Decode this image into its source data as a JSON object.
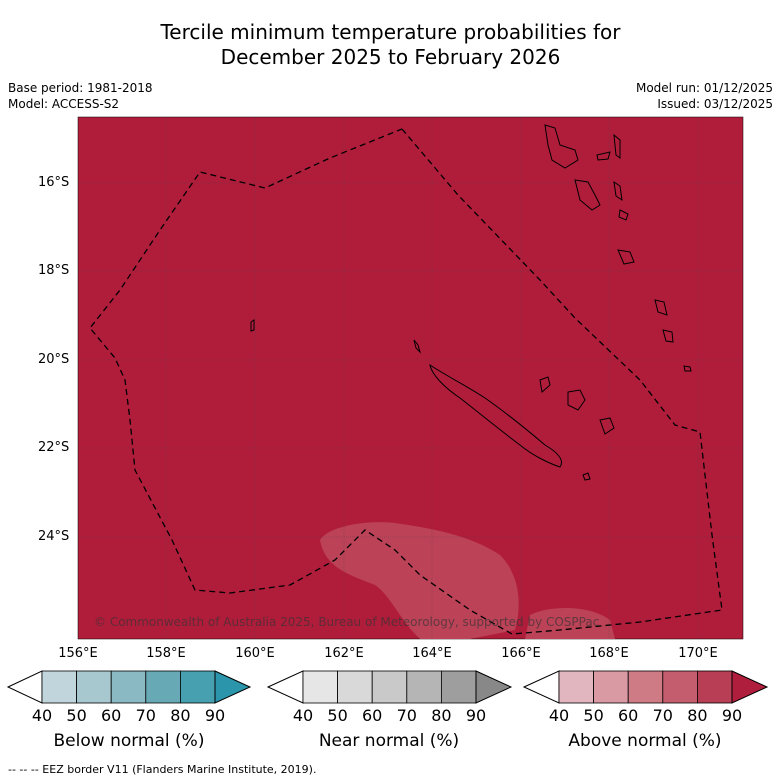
{
  "title_line1": "Tercile minimum temperature probabilities for",
  "title_line2": "December 2025 to February 2026",
  "base_period": "Base period: 1981-2018",
  "model": "Model: ACCESS-S2",
  "model_run": "Model run: 01/12/2025",
  "issued": "Issued: 03/12/2025",
  "copyright": "© Commonwealth of Australia 2025, Bureau of Meteorology, supported by COSPPac",
  "lat_labels": [
    "16°S",
    "18°S",
    "20°S",
    "22°S",
    "24°S"
  ],
  "lon_labels": [
    "156°E",
    "158°E",
    "160°E",
    "162°E",
    "164°E",
    "166°E",
    "168°E",
    "170°E"
  ],
  "colorbars": [
    {
      "title": "Below normal (%)",
      "ticks": [
        "40",
        "50",
        "60",
        "70",
        "80",
        "90"
      ],
      "colors": [
        "#ffffff",
        "#c0d5dc",
        "#a7c8cf",
        "#8ab8c3",
        "#68a9b6",
        "#47a0b0",
        "#2b95ab"
      ]
    },
    {
      "title": "Near normal (%)",
      "ticks": [
        "40",
        "50",
        "60",
        "70",
        "80",
        "90"
      ],
      "colors": [
        "#ffffff",
        "#e6e6e6",
        "#d9d9d9",
        "#c9c9c9",
        "#b5b5b5",
        "#9e9e9e",
        "#888888"
      ]
    },
    {
      "title": "Above normal (%)",
      "ticks": [
        "40",
        "50",
        "60",
        "70",
        "80",
        "90"
      ],
      "colors": [
        "#ffffff",
        "#e1b6be",
        "#d99aa3",
        "#cf7b86",
        "#c45d6d",
        "#b73e54",
        "#b01e3e"
      ]
    }
  ],
  "map_colors": {
    "above_90": "#b01d3b",
    "above_80": "#bb4257"
  },
  "footer": "--  --  -- EEZ border V11 (Flanders Marine Institute, 2019)."
}
